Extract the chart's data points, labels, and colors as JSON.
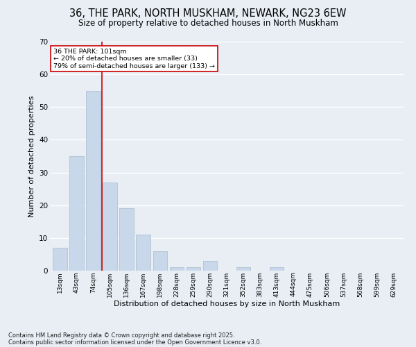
{
  "title": "36, THE PARK, NORTH MUSKHAM, NEWARK, NG23 6EW",
  "subtitle": "Size of property relative to detached houses in North Muskham",
  "xlabel": "Distribution of detached houses by size in North Muskham",
  "ylabel": "Number of detached properties",
  "bar_color": "#c8d8ea",
  "bar_edgecolor": "#aabccc",
  "background_color": "#e8eef4",
  "grid_color": "#ffffff",
  "categories": [
    "13sqm",
    "43sqm",
    "74sqm",
    "105sqm",
    "136sqm",
    "167sqm",
    "198sqm",
    "228sqm",
    "259sqm",
    "290sqm",
    "321sqm",
    "352sqm",
    "383sqm",
    "413sqm",
    "444sqm",
    "475sqm",
    "506sqm",
    "537sqm",
    "568sqm",
    "599sqm",
    "629sqm"
  ],
  "values": [
    7,
    35,
    55,
    27,
    19,
    11,
    6,
    1,
    1,
    3,
    0,
    1,
    0,
    1,
    0,
    0,
    0,
    0,
    0,
    0,
    0
  ],
  "ylim": [
    0,
    70
  ],
  "yticks": [
    0,
    10,
    20,
    30,
    40,
    50,
    60,
    70
  ],
  "vline_color": "#cc0000",
  "annotation_title": "36 THE PARK: 101sqm",
  "annotation_line1": "← 20% of detached houses are smaller (33)",
  "annotation_line2": "79% of semi-detached houses are larger (133) →",
  "annotation_box_color": "#ffffff",
  "annotation_box_edgecolor": "#cc0000",
  "footnote1": "Contains HM Land Registry data © Crown copyright and database right 2025.",
  "footnote2": "Contains public sector information licensed under the Open Government Licence v3.0."
}
